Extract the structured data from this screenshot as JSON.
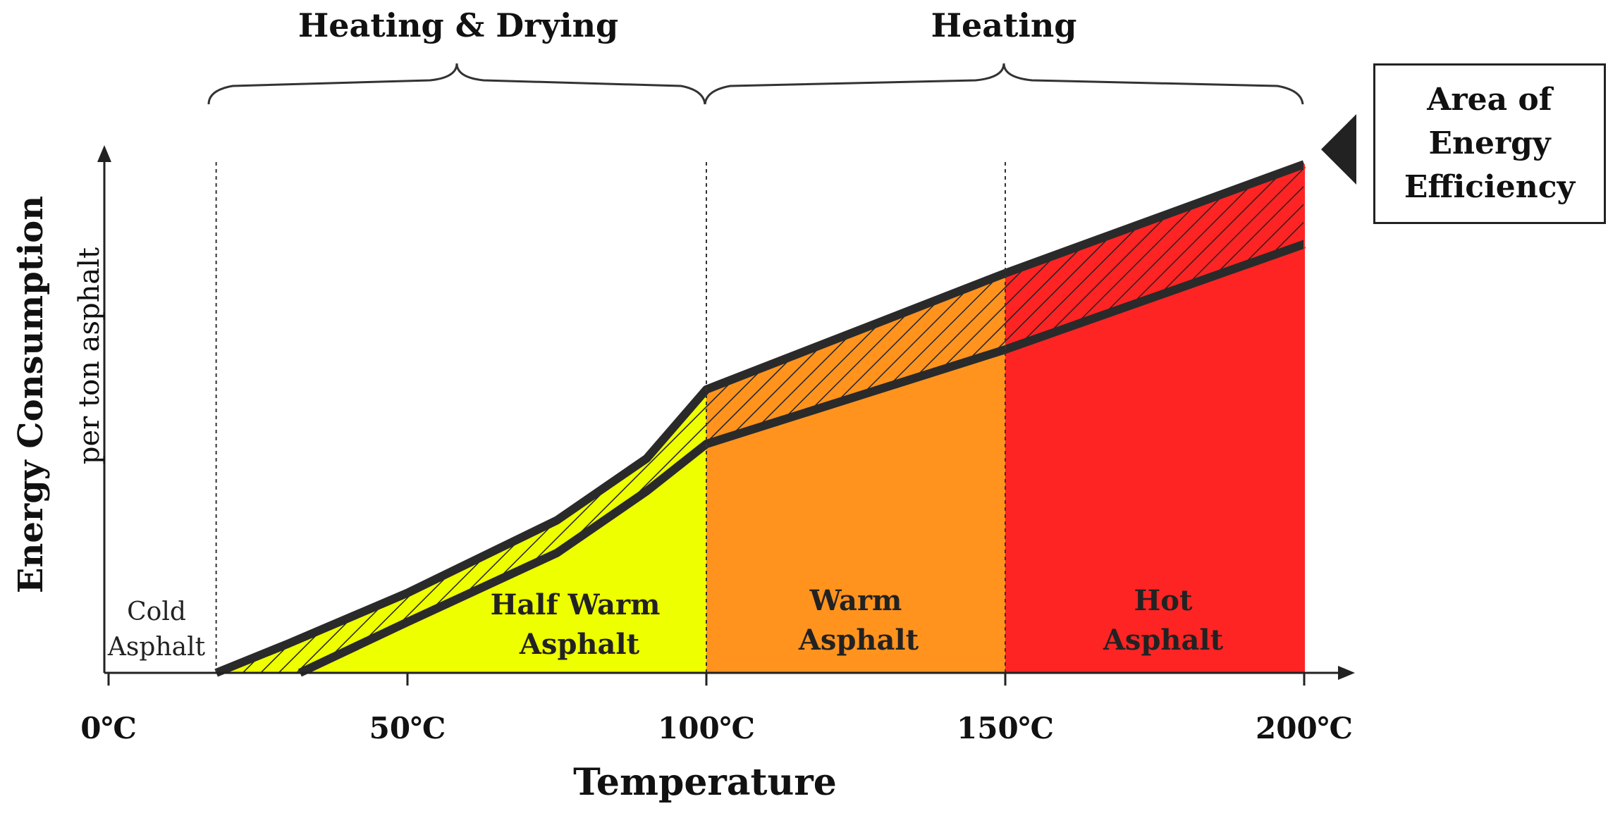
{
  "phase_labels": {
    "heating_drying": "Heating & Drying",
    "heating": "Heating"
  },
  "axes": {
    "y_title": "Energy Consumption",
    "y_subtitle": "per ton asphalt",
    "x_title": "Temperature"
  },
  "x_ticks": [
    "0℃",
    "50℃",
    "100℃",
    "150℃",
    "200℃"
  ],
  "regions": {
    "cold": {
      "line1": "Cold",
      "line2": "Asphalt",
      "color": "#ffffff"
    },
    "half_warm": {
      "line1": "Half Warm",
      "line2": "Asphalt",
      "color": "#eeff00"
    },
    "warm": {
      "line1": "Warm",
      "line2": "Asphalt",
      "color": "#ff931e"
    },
    "hot": {
      "line1": "Hot",
      "line2": "Asphalt",
      "color": "#ff2424"
    }
  },
  "legend": {
    "label": "Area of\nEnergy\nEfficiency"
  },
  "chart_data": {
    "type": "area",
    "title": "",
    "xlabel": "Temperature",
    "ylabel": "Energy Consumption per ton asphalt",
    "x_unit": "℃",
    "xlim": [
      0,
      200
    ],
    "categories": [
      "Cold Asphalt",
      "Half Warm Asphalt",
      "Warm Asphalt",
      "Hot Asphalt"
    ],
    "category_ranges": [
      [
        0,
        18
      ],
      [
        18,
        100
      ],
      [
        100,
        150
      ],
      [
        150,
        200
      ]
    ],
    "phases": [
      {
        "name": "Heating & Drying",
        "range": [
          18,
          100
        ]
      },
      {
        "name": "Heating",
        "range": [
          100,
          200
        ]
      }
    ],
    "series": [
      {
        "name": "upper bound",
        "x": [
          18,
          30,
          50,
          75,
          90,
          100,
          150,
          200
        ],
        "y": [
          0,
          8,
          22,
          42,
          59,
          78,
          110,
          140
        ]
      },
      {
        "name": "lower bound",
        "x": [
          32,
          50,
          75,
          90,
          100,
          150,
          200
        ],
        "y": [
          0,
          14,
          33,
          50,
          63,
          89,
          118
        ]
      }
    ],
    "band_label": "Area of Energy Efficiency"
  }
}
